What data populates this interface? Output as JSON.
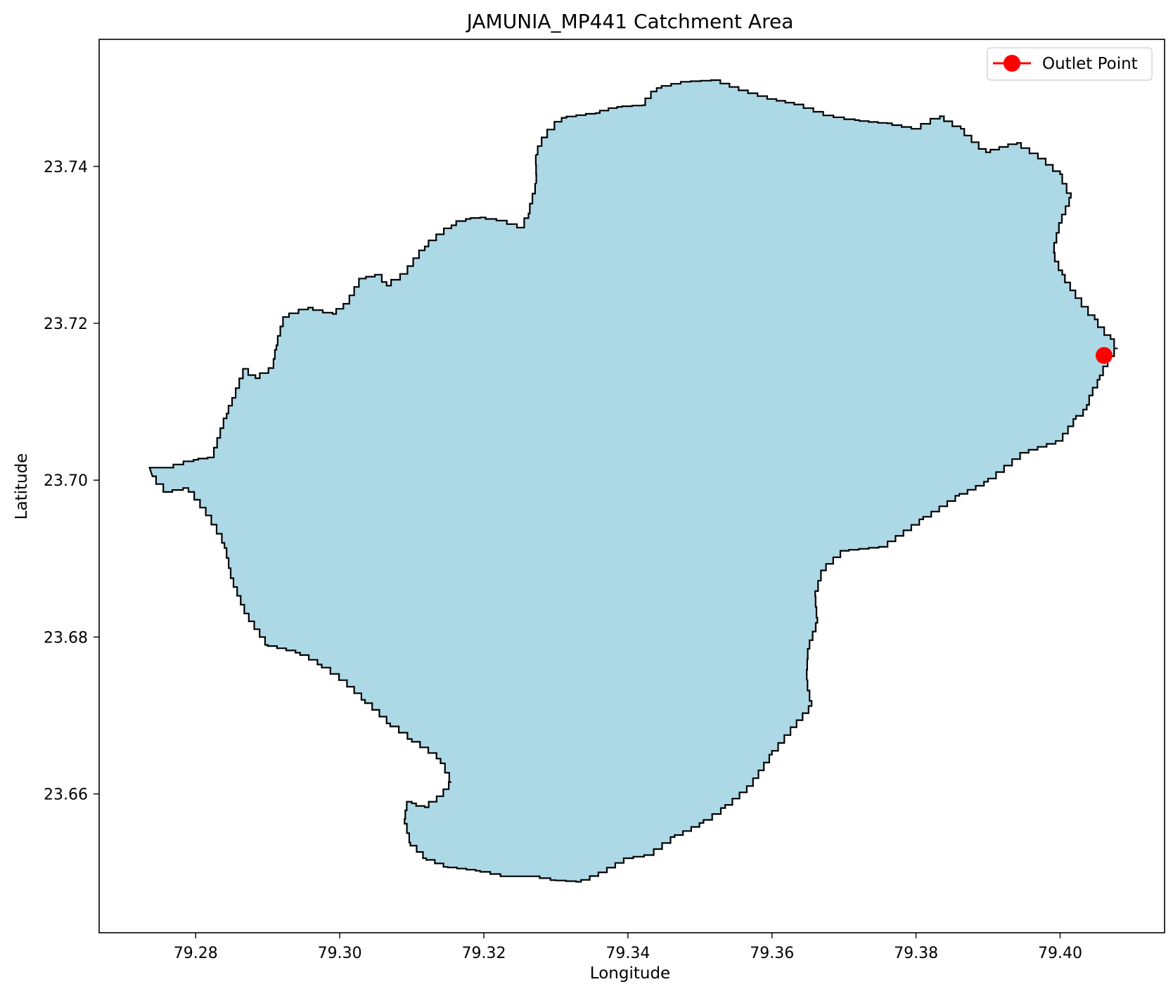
{
  "chart_data": {
    "type": "map",
    "title": "JAMUNIA_MP441 Catchment Area",
    "xlabel": "Longitude",
    "ylabel": "Latitude",
    "xlim": [
      79.2666,
      79.4145
    ],
    "ylim": [
      23.6423,
      23.7562
    ],
    "x_ticks": [
      79.28,
      79.3,
      79.32,
      79.34,
      79.36,
      79.38,
      79.4
    ],
    "x_tick_labels": [
      "79.28",
      "79.30",
      "79.32",
      "79.34",
      "79.36",
      "79.38",
      "79.40"
    ],
    "y_ticks": [
      23.66,
      23.68,
      23.7,
      23.72,
      23.74
    ],
    "y_tick_labels": [
      "23.66",
      "23.68",
      "23.70",
      "23.72",
      "23.74"
    ],
    "grid": false,
    "legend_position": "top-right",
    "catchment": {
      "fill_color": "#add8e6",
      "edge_color": "#000000",
      "boundary": [
        [
          79.2736,
          23.7016
        ],
        [
          79.2762,
          23.7016
        ],
        [
          79.2797,
          23.7026
        ],
        [
          79.2823,
          23.7029
        ],
        [
          79.2843,
          23.7085
        ],
        [
          79.2853,
          23.7105
        ],
        [
          79.2868,
          23.7142
        ],
        [
          79.2883,
          23.713
        ],
        [
          79.2907,
          23.7143
        ],
        [
          79.2912,
          23.7172
        ],
        [
          79.2923,
          23.7208
        ],
        [
          79.2956,
          23.722
        ],
        [
          79.299,
          23.7212
        ],
        [
          79.301,
          23.7225
        ],
        [
          79.303,
          23.7257
        ],
        [
          79.3055,
          23.7262
        ],
        [
          79.3065,
          23.7248
        ],
        [
          79.309,
          23.7263
        ],
        [
          79.3118,
          23.7298
        ],
        [
          79.3155,
          23.7325
        ],
        [
          79.3175,
          23.7333
        ],
        [
          79.3195,
          23.7335
        ],
        [
          79.3225,
          23.7331
        ],
        [
          79.3253,
          23.7322
        ],
        [
          79.3262,
          23.734
        ],
        [
          79.3273,
          23.7378
        ],
        [
          79.3272,
          23.7415
        ],
        [
          79.3283,
          23.7437
        ],
        [
          79.3308,
          23.7462
        ],
        [
          79.3355,
          23.7468
        ],
        [
          79.3385,
          23.7476
        ],
        [
          79.342,
          23.7478
        ],
        [
          79.344,
          23.75
        ],
        [
          79.348,
          23.7508
        ],
        [
          79.3522,
          23.751
        ],
        [
          79.356,
          23.7497
        ],
        [
          79.36,
          23.7486
        ],
        [
          79.3637,
          23.7479
        ],
        [
          79.3678,
          23.7465
        ],
        [
          79.3715,
          23.7459
        ],
        [
          79.376,
          23.7455
        ],
        [
          79.38,
          23.7448
        ],
        [
          79.3833,
          23.7464
        ],
        [
          79.3862,
          23.7448
        ],
        [
          79.3897,
          23.7418
        ],
        [
          79.394,
          23.743
        ],
        [
          79.3975,
          23.741
        ],
        [
          79.4,
          23.739
        ],
        [
          79.4015,
          23.736
        ],
        [
          79.4,
          23.7328
        ],
        [
          79.399,
          23.729
        ],
        [
          79.4003,
          23.7262
        ],
        [
          79.4025,
          23.7232
        ],
        [
          79.4048,
          23.7205
        ],
        [
          79.407,
          23.718
        ],
        [
          79.408,
          23.7168
        ],
        [
          79.407,
          23.7158
        ],
        [
          79.4062,
          23.7145
        ],
        [
          79.4055,
          23.7128
        ],
        [
          79.4042,
          23.7108
        ],
        [
          79.4037,
          23.709
        ],
        [
          79.4022,
          23.7078
        ],
        [
          79.4,
          23.705
        ],
        [
          79.395,
          23.7035
        ],
        [
          79.39,
          23.6998
        ],
        [
          79.386,
          23.698
        ],
        [
          79.381,
          23.695
        ],
        [
          79.3755,
          23.6915
        ],
        [
          79.37,
          23.691
        ],
        [
          79.367,
          23.6885
        ],
        [
          79.366,
          23.6852
        ],
        [
          79.3663,
          23.6818
        ],
        [
          79.365,
          23.6785
        ],
        [
          79.3648,
          23.6745
        ],
        [
          79.3655,
          23.6712
        ],
        [
          79.363,
          23.6685
        ],
        [
          79.36,
          23.665
        ],
        [
          79.357,
          23.661
        ],
        [
          79.3535,
          23.6582
        ],
        [
          79.3505,
          23.6563
        ],
        [
          79.3465,
          23.6545
        ],
        [
          79.343,
          23.6522
        ],
        [
          79.34,
          23.6518
        ],
        [
          79.3365,
          23.65
        ],
        [
          79.3335,
          23.6488
        ],
        [
          79.33,
          23.649
        ],
        [
          79.327,
          23.6495
        ],
        [
          79.323,
          23.6495
        ],
        [
          79.3195,
          23.6502
        ],
        [
          79.315,
          23.6507
        ],
        [
          79.312,
          23.6518
        ],
        [
          79.3098,
          23.6538
        ],
        [
          79.309,
          23.6568
        ],
        [
          79.3094,
          23.659
        ],
        [
          79.31,
          23.6588
        ],
        [
          79.3118,
          23.6583
        ],
        [
          79.314,
          23.6597
        ],
        [
          79.3155,
          23.6615
        ],
        [
          79.314,
          23.6645
        ],
        [
          79.31,
          23.667
        ],
        [
          79.307,
          23.669
        ],
        [
          79.3035,
          23.672
        ],
        [
          79.3005,
          23.6745
        ],
        [
          79.2975,
          23.6765
        ],
        [
          79.2945,
          23.678
        ],
        [
          79.29,
          23.679
        ],
        [
          79.287,
          23.683
        ],
        [
          79.285,
          23.6875
        ],
        [
          79.284,
          23.692
        ],
        [
          79.2818,
          23.6955
        ],
        [
          79.279,
          23.699
        ],
        [
          79.276,
          23.6985
        ],
        [
          79.274,
          23.7005
        ]
      ]
    },
    "series": [
      {
        "name": "Outlet Point",
        "type": "point",
        "color": "#ff0000",
        "x": [
          79.4061
        ],
        "y": [
          23.7159
        ]
      }
    ],
    "legend": [
      {
        "label": "Outlet Point",
        "color": "#ff0000",
        "marker": "circle-line"
      }
    ]
  }
}
